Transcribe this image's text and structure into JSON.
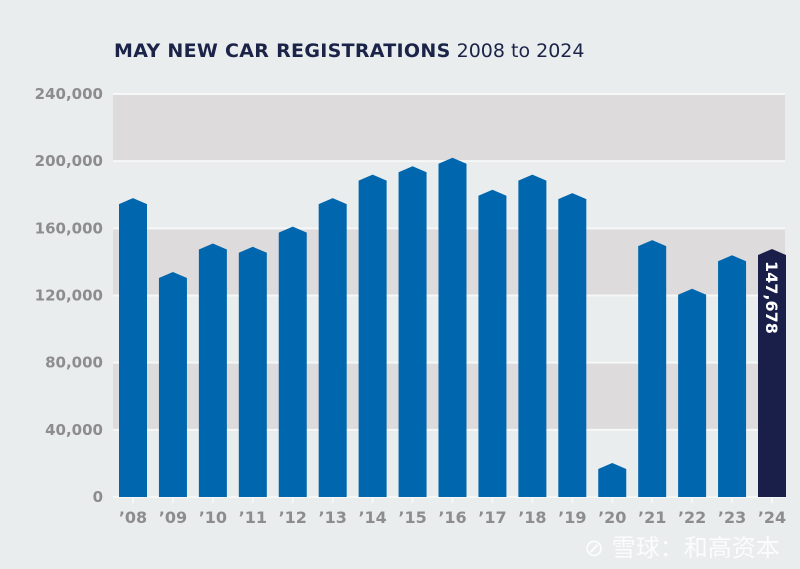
{
  "chart_data": {
    "type": "bar",
    "title": "MAY NEW CAR REGISTRATIONS",
    "subtitle": "2008 to 2024",
    "xlabel": "",
    "ylabel": "",
    "ylim": [
      0,
      240000
    ],
    "yticks": [
      0,
      40000,
      80000,
      120000,
      160000,
      200000,
      240000
    ],
    "ytick_labels": [
      "0",
      "40,000",
      "80,000",
      "120,000",
      "160,000",
      "200,000",
      "240,000"
    ],
    "grid": true,
    "categories": [
      "'08",
      "'09",
      "'10",
      "'11",
      "'12",
      "'13",
      "'14",
      "'15",
      "'16",
      "'17",
      "'18",
      "'19",
      "'20",
      "'21",
      "'22",
      "'23",
      "'24"
    ],
    "values": [
      178000,
      134000,
      151000,
      149000,
      161000,
      178000,
      192000,
      197000,
      202000,
      183000,
      192000,
      181000,
      20247,
      153000,
      124000,
      144000,
      147678
    ],
    "data_labels": {
      "16": "147,678"
    },
    "colors": {
      "bar": "#0066ad",
      "highlight": "#1a1f4a",
      "band": "#dedbdc",
      "background": "#e9edee"
    }
  },
  "watermark": "雪球：和高资本"
}
